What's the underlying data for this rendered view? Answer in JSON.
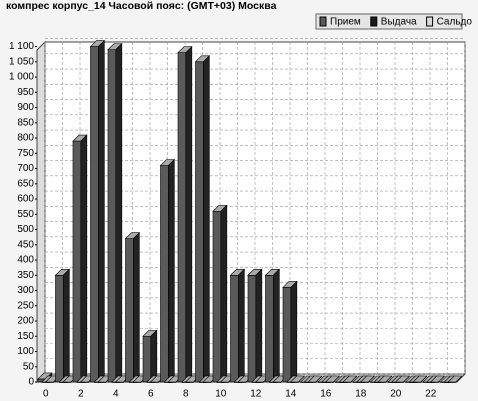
{
  "chart_data": {
    "type": "bar3d",
    "title": "компрес корпус_14  Часовой пояс: (GMT+03) Москва",
    "categories": [
      0,
      null,
      2,
      null,
      4,
      null,
      6,
      null,
      8,
      null,
      10,
      null,
      12,
      null,
      14,
      null,
      16,
      null,
      18,
      null,
      20,
      null,
      22,
      null
    ],
    "series": [
      {
        "name": "Прием",
        "color": "#5a5a5a",
        "values": [
          10,
          350,
          790,
          1100,
          1090,
          470,
          150,
          710,
          1080,
          1050,
          560,
          350,
          350,
          350,
          310,
          0,
          0,
          0,
          0,
          0,
          0,
          0,
          0,
          0
        ]
      },
      {
        "name": "Выдача",
        "color": "#1a1a1a",
        "values": [
          0,
          0,
          0,
          0,
          0,
          0,
          0,
          0,
          0,
          0,
          0,
          0,
          0,
          0,
          0,
          0,
          0,
          0,
          0,
          0,
          0,
          0,
          0,
          0
        ]
      },
      {
        "name": "Сальдо",
        "color": "#d8d8d8",
        "values": [
          0,
          0,
          0,
          0,
          0,
          0,
          0,
          0,
          0,
          0,
          0,
          0,
          0,
          0,
          0,
          0,
          0,
          0,
          0,
          0,
          0,
          0,
          0,
          0
        ]
      }
    ],
    "ylim": [
      0,
      1115
    ],
    "yticks": [
      0,
      50,
      100,
      150,
      200,
      250,
      300,
      350,
      400,
      450,
      500,
      550,
      600,
      650,
      700,
      750,
      800,
      850,
      900,
      950,
      {
        "value": 1000,
        "label": "1 000"
      },
      {
        "value": 1050,
        "label": "1 050"
      },
      {
        "value": 1100,
        "label": "1 100"
      }
    ],
    "grid": true
  }
}
